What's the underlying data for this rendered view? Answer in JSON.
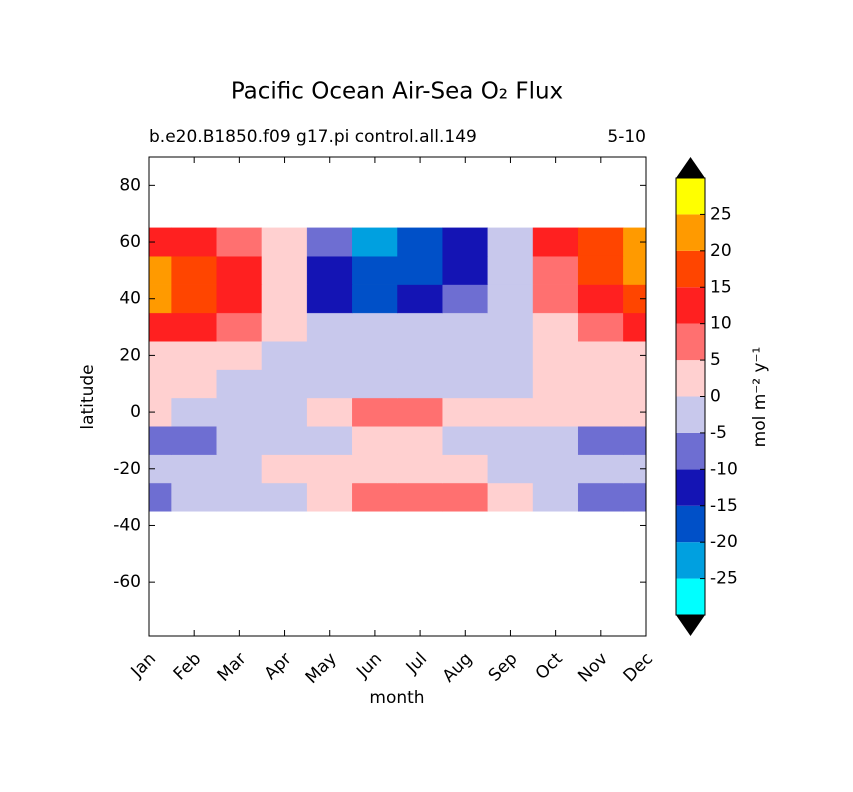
{
  "chart_data": {
    "type": "contour",
    "title": "Pacific Ocean Air-Sea O₂ Flux",
    "subtitle": "b.e20.B1850.f09 g17.pi control.all.149",
    "subtitle_right": "5-10",
    "x_label": "month",
    "y_label": "latitude",
    "categories": [
      "Jan",
      "Feb",
      "Mar",
      "Apr",
      "May",
      "Jun",
      "Jul",
      "Aug",
      "Sep",
      "Oct",
      "Nov",
      "Dec"
    ],
    "y": [
      -30,
      -20,
      -10,
      0,
      10,
      20,
      30,
      40,
      50,
      60
    ],
    "ylim": [
      -79,
      90
    ],
    "yticks": [
      -60,
      -40,
      -20,
      0,
      20,
      40,
      60,
      80
    ],
    "z": [
      [
        -7,
        -3,
        -2,
        -1,
        3,
        7,
        8,
        6,
        2,
        -3,
        -6,
        -7
      ],
      [
        -2,
        -2,
        -1,
        1,
        2,
        3,
        3,
        2,
        -1,
        -2,
        -2,
        -2
      ],
      [
        -6,
        -6,
        -3,
        -2,
        -1,
        1,
        2,
        -1,
        -2,
        -4,
        -6,
        -6
      ],
      [
        1,
        -1,
        -1,
        -2,
        3,
        5,
        6,
        4,
        2,
        2,
        1,
        1
      ],
      [
        2,
        1,
        -1,
        -2,
        -3,
        -3,
        -3,
        -2,
        -1,
        1,
        2,
        2
      ],
      [
        3,
        3,
        2,
        -1,
        -3,
        -4,
        -3,
        -2,
        -1,
        2,
        3,
        3
      ],
      [
        12,
        10,
        6,
        1,
        -3,
        -4,
        -4,
        -3,
        -1,
        4,
        8,
        11
      ],
      [
        20,
        16,
        10,
        2,
        -14,
        -17,
        -15,
        -9,
        -1,
        6,
        14,
        19
      ],
      [
        22,
        18,
        11,
        2,
        -13,
        -20,
        -17,
        -11,
        -2,
        8,
        17,
        21
      ],
      [
        14,
        12,
        7,
        1,
        -9,
        -23,
        -19,
        -12,
        -3,
        10,
        19,
        24
      ]
    ],
    "levels": [
      -25,
      -20,
      -15,
      -10,
      -5,
      0,
      5,
      10,
      15,
      20,
      25
    ],
    "colors": [
      "#00ffff",
      "#00a0e0",
      "#0050c8",
      "#1414b4",
      "#6e6ed2",
      "#c8c8ec",
      "#ffd0d0",
      "#ff7070",
      "#ff2020",
      "#ff4500",
      "#ff9a00",
      "#ffff00"
    ],
    "colorbar_label": "mol m⁻² y⁻¹"
  }
}
